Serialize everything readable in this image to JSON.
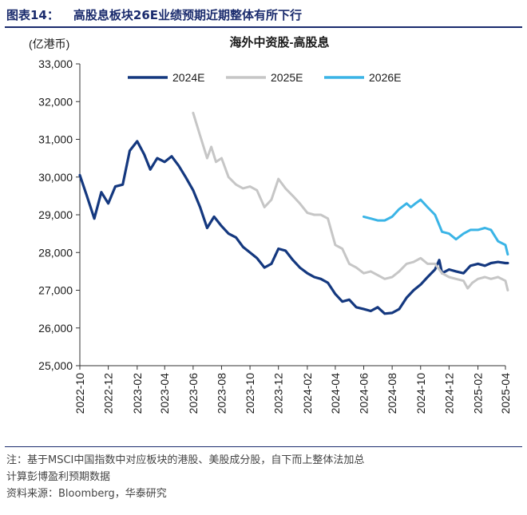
{
  "figure": {
    "number": "图表14：",
    "caption": "高股息板块26E业绩预期近期整体有所下行"
  },
  "chart_data": {
    "type": "line",
    "title": "海外中资股-高股息",
    "ylabel": "(亿港币)",
    "ylim": [
      25000,
      33000
    ],
    "yticks": [
      25000,
      26000,
      27000,
      28000,
      29000,
      30000,
      31000,
      32000,
      33000
    ],
    "ytick_labels": [
      "25,000",
      "26,000",
      "27,000",
      "28,000",
      "29,000",
      "30,000",
      "31,000",
      "32,000",
      "33,000"
    ],
    "xlim": [
      "2022-10",
      "2025-04"
    ],
    "xticks": [
      "2022-10",
      "2022-12",
      "2023-02",
      "2023-04",
      "2023-06",
      "2023-08",
      "2023-10",
      "2023-12",
      "2024-02",
      "2024-04",
      "2024-06",
      "2024-08",
      "2024-10",
      "2024-12",
      "2025-02",
      "2025-04"
    ],
    "legend_position": "top",
    "grid": false,
    "series": [
      {
        "name": "2024E",
        "color": "#14387f",
        "points": [
          [
            "2022-10",
            30050
          ],
          [
            "2022-10-16",
            29500
          ],
          [
            "2022-11-01",
            28900
          ],
          [
            "2022-11-16",
            29600
          ],
          [
            "2022-12-01",
            29300
          ],
          [
            "2022-12-16",
            29750
          ],
          [
            "2023-01-01",
            29800
          ],
          [
            "2023-01-16",
            30700
          ],
          [
            "2023-02-01",
            30950
          ],
          [
            "2023-02-16",
            30600
          ],
          [
            "2023-03-01",
            30200
          ],
          [
            "2023-03-16",
            30500
          ],
          [
            "2023-04-01",
            30400
          ],
          [
            "2023-04-16",
            30550
          ],
          [
            "2023-05-01",
            30300
          ],
          [
            "2023-05-16",
            30000
          ],
          [
            "2023-06-01",
            29650
          ],
          [
            "2023-06-16",
            29200
          ],
          [
            "2023-07-01",
            28650
          ],
          [
            "2023-07-16",
            28950
          ],
          [
            "2023-08-01",
            28700
          ],
          [
            "2023-08-16",
            28500
          ],
          [
            "2023-09-01",
            28400
          ],
          [
            "2023-09-16",
            28150
          ],
          [
            "2023-10-01",
            28000
          ],
          [
            "2023-10-16",
            27850
          ],
          [
            "2023-11-01",
            27600
          ],
          [
            "2023-11-16",
            27700
          ],
          [
            "2023-12-01",
            28100
          ],
          [
            "2023-12-16",
            28050
          ],
          [
            "2024-01-01",
            27800
          ],
          [
            "2024-01-16",
            27600
          ],
          [
            "2024-02-01",
            27450
          ],
          [
            "2024-02-16",
            27350
          ],
          [
            "2024-03-01",
            27300
          ],
          [
            "2024-03-16",
            27200
          ],
          [
            "2024-04-01",
            26900
          ],
          [
            "2024-04-16",
            26700
          ],
          [
            "2024-05-01",
            26750
          ],
          [
            "2024-05-16",
            26550
          ],
          [
            "2024-06-01",
            26500
          ],
          [
            "2024-06-16",
            26450
          ],
          [
            "2024-07-01",
            26550
          ],
          [
            "2024-07-16",
            26380
          ],
          [
            "2024-08-01",
            26400
          ],
          [
            "2024-08-16",
            26500
          ],
          [
            "2024-09-01",
            26800
          ],
          [
            "2024-09-16",
            27000
          ],
          [
            "2024-10-01",
            27150
          ],
          [
            "2024-10-16",
            27350
          ],
          [
            "2024-11-01",
            27550
          ],
          [
            "2024-11-10",
            27800
          ],
          [
            "2024-11-16",
            27450
          ],
          [
            "2024-12-01",
            27550
          ],
          [
            "2024-12-16",
            27500
          ],
          [
            "2025-01-01",
            27450
          ],
          [
            "2025-01-16",
            27650
          ],
          [
            "2025-02-01",
            27700
          ],
          [
            "2025-02-16",
            27650
          ],
          [
            "2025-03-01",
            27720
          ],
          [
            "2025-03-16",
            27750
          ],
          [
            "2025-04-01",
            27720
          ],
          [
            "2025-04-06",
            27720
          ]
        ]
      },
      {
        "name": "2025E",
        "color": "#c6c6c6",
        "points": [
          [
            "2023-06-01",
            31700
          ],
          [
            "2023-06-16",
            31100
          ],
          [
            "2023-07-01",
            30500
          ],
          [
            "2023-07-10",
            30800
          ],
          [
            "2023-07-20",
            30400
          ],
          [
            "2023-08-01",
            30500
          ],
          [
            "2023-08-16",
            30000
          ],
          [
            "2023-09-01",
            29800
          ],
          [
            "2023-09-16",
            29700
          ],
          [
            "2023-10-01",
            29750
          ],
          [
            "2023-10-16",
            29650
          ],
          [
            "2023-11-01",
            29200
          ],
          [
            "2023-11-16",
            29400
          ],
          [
            "2023-12-01",
            29950
          ],
          [
            "2023-12-16",
            29700
          ],
          [
            "2024-01-01",
            29500
          ],
          [
            "2024-01-16",
            29300
          ],
          [
            "2024-02-01",
            29050
          ],
          [
            "2024-02-16",
            29000
          ],
          [
            "2024-03-01",
            29000
          ],
          [
            "2024-03-16",
            28900
          ],
          [
            "2024-04-01",
            28200
          ],
          [
            "2024-04-16",
            28100
          ],
          [
            "2024-05-01",
            27700
          ],
          [
            "2024-05-16",
            27600
          ],
          [
            "2024-06-01",
            27450
          ],
          [
            "2024-06-16",
            27500
          ],
          [
            "2024-07-01",
            27400
          ],
          [
            "2024-07-16",
            27300
          ],
          [
            "2024-08-01",
            27350
          ],
          [
            "2024-08-16",
            27500
          ],
          [
            "2024-09-01",
            27700
          ],
          [
            "2024-09-16",
            27750
          ],
          [
            "2024-10-01",
            27850
          ],
          [
            "2024-10-16",
            27700
          ],
          [
            "2024-11-01",
            27700
          ],
          [
            "2024-11-16",
            27450
          ],
          [
            "2024-12-01",
            27350
          ],
          [
            "2024-12-16",
            27300
          ],
          [
            "2025-01-01",
            27250
          ],
          [
            "2025-01-10",
            27050
          ],
          [
            "2025-01-20",
            27200
          ],
          [
            "2025-02-01",
            27300
          ],
          [
            "2025-02-16",
            27350
          ],
          [
            "2025-03-01",
            27300
          ],
          [
            "2025-03-16",
            27350
          ],
          [
            "2025-04-01",
            27250
          ],
          [
            "2025-04-06",
            27000
          ]
        ]
      },
      {
        "name": "2026E",
        "color": "#3ab4e6",
        "points": [
          [
            "2024-06-01",
            28950
          ],
          [
            "2024-06-16",
            28900
          ],
          [
            "2024-07-01",
            28850
          ],
          [
            "2024-07-16",
            28850
          ],
          [
            "2024-08-01",
            28950
          ],
          [
            "2024-08-16",
            29150
          ],
          [
            "2024-09-01",
            29300
          ],
          [
            "2024-09-10",
            29200
          ],
          [
            "2024-09-20",
            29300
          ],
          [
            "2024-10-01",
            29400
          ],
          [
            "2024-10-16",
            29200
          ],
          [
            "2024-11-01",
            29000
          ],
          [
            "2024-11-16",
            28550
          ],
          [
            "2024-12-01",
            28500
          ],
          [
            "2024-12-16",
            28350
          ],
          [
            "2025-01-01",
            28500
          ],
          [
            "2025-01-16",
            28600
          ],
          [
            "2025-02-01",
            28600
          ],
          [
            "2025-02-16",
            28650
          ],
          [
            "2025-03-01",
            28600
          ],
          [
            "2025-03-16",
            28300
          ],
          [
            "2025-04-01",
            28200
          ],
          [
            "2025-04-06",
            27950
          ]
        ]
      }
    ]
  },
  "notes": {
    "line1": "注：基于MSCI中国指数中对应板块的港股、美股成分股，自下而上整体法加总",
    "line2": "计算彭博盈利预期数据",
    "source": "资料来源：Bloomberg，华泰研究"
  }
}
